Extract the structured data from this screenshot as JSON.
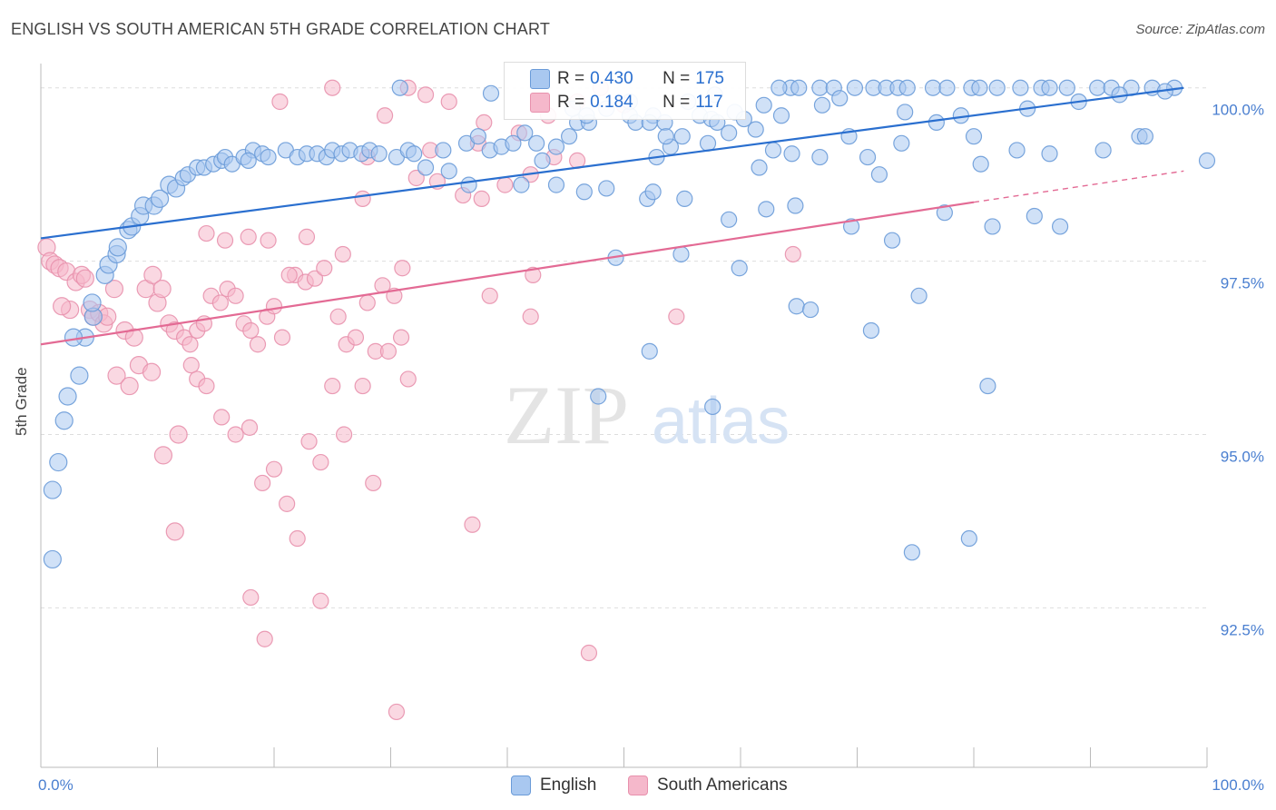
{
  "title": "ENGLISH VS SOUTH AMERICAN 5TH GRADE CORRELATION CHART",
  "source": "Source: ZipAtlas.com",
  "colors": {
    "english_fill": "#a9c8f0",
    "english_stroke": "#6a9bd8",
    "english_line": "#2a6fcf",
    "south_fill": "#f5b8cb",
    "south_stroke": "#e891ad",
    "south_line": "#e36a94",
    "tick_text": "#4a7fd0",
    "grid": "#dddddd"
  },
  "stats": {
    "english": {
      "r_label": "R =",
      "r": "0.430",
      "n_label": "N =",
      "n": "175"
    },
    "south": {
      "r_label": "R =",
      "r": "0.184",
      "n_label": "N =",
      "n": "117"
    }
  },
  "legend": {
    "english": "English",
    "south": "South Americans"
  },
  "chart_data": {
    "type": "scatter",
    "title": "ENGLISH VS SOUTH AMERICAN 5TH GRADE CORRELATION CHART",
    "xlabel": "",
    "ylabel": "5th Grade",
    "xlim": [
      0,
      100
    ],
    "ylim": [
      90.2,
      100.35
    ],
    "x_tick_labels": [
      "0.0%",
      "100.0%"
    ],
    "y_ticks": [
      92.5,
      95.0,
      97.5,
      100.0
    ],
    "y_tick_labels": [
      "92.5%",
      "95.0%",
      "97.5%",
      "100.0%"
    ],
    "grid": true,
    "legend_position": "bottom",
    "watermark": {
      "zip": "ZIP",
      "atlas": "atlas"
    },
    "series": [
      {
        "name": "English",
        "trend": {
          "x": [
            0,
            98
          ],
          "y": [
            97.83,
            100.0
          ]
        },
        "points": [
          [
            1.0,
            93.2
          ],
          [
            1.0,
            94.2
          ],
          [
            1.5,
            94.6
          ],
          [
            2.0,
            95.2
          ],
          [
            2.3,
            95.55
          ],
          [
            3.3,
            95.85
          ],
          [
            3.8,
            96.4
          ],
          [
            2.8,
            96.4
          ],
          [
            4.5,
            96.7
          ],
          [
            4.4,
            96.9
          ],
          [
            5.5,
            97.3
          ],
          [
            5.8,
            97.45
          ],
          [
            6.5,
            97.6
          ],
          [
            6.6,
            97.7
          ],
          [
            7.5,
            97.95
          ],
          [
            7.8,
            98.0
          ],
          [
            8.5,
            98.15
          ],
          [
            8.8,
            98.3
          ],
          [
            9.7,
            98.3
          ],
          [
            10.2,
            98.4
          ],
          [
            11.0,
            98.6
          ],
          [
            11.6,
            98.55
          ],
          [
            12.2,
            98.7
          ],
          [
            12.6,
            98.75
          ],
          [
            13.4,
            98.85
          ],
          [
            14.0,
            98.85
          ],
          [
            14.8,
            98.9
          ],
          [
            15.5,
            98.95
          ],
          [
            15.8,
            99.0
          ],
          [
            16.4,
            98.9
          ],
          [
            17.4,
            99.0
          ],
          [
            18.2,
            99.1
          ],
          [
            19.0,
            99.05
          ],
          [
            19.5,
            99.0
          ],
          [
            21.0,
            99.1
          ],
          [
            22.0,
            99.0
          ],
          [
            22.8,
            99.05
          ],
          [
            23.7,
            99.05
          ],
          [
            24.5,
            99.0
          ],
          [
            25.0,
            99.1
          ],
          [
            25.8,
            99.05
          ],
          [
            26.5,
            99.1
          ],
          [
            27.5,
            99.05
          ],
          [
            28.2,
            99.1
          ],
          [
            29.0,
            99.05
          ],
          [
            30.5,
            99.0
          ],
          [
            31.5,
            99.1
          ],
          [
            32.0,
            99.05
          ],
          [
            33.0,
            98.85
          ],
          [
            34.5,
            99.1
          ],
          [
            35.0,
            98.8
          ],
          [
            36.5,
            99.2
          ],
          [
            37.5,
            99.3
          ],
          [
            38.5,
            99.1
          ],
          [
            39.5,
            99.15
          ],
          [
            40.5,
            99.2
          ],
          [
            41.5,
            99.35
          ],
          [
            42.5,
            99.2
          ],
          [
            43.0,
            98.95
          ],
          [
            44.2,
            99.15
          ],
          [
            45.3,
            99.3
          ],
          [
            46.0,
            99.5
          ],
          [
            47.0,
            99.5
          ],
          [
            48.5,
            99.7
          ],
          [
            50.5,
            99.6
          ],
          [
            51.0,
            99.5
          ],
          [
            52.5,
            99.6
          ],
          [
            53.5,
            99.5
          ],
          [
            54.0,
            99.15
          ],
          [
            55.5,
            99.8
          ],
          [
            56.5,
            99.6
          ],
          [
            57.5,
            99.55
          ],
          [
            58.0,
            99.5
          ],
          [
            59.5,
            99.65
          ],
          [
            60.3,
            99.55
          ],
          [
            61.3,
            99.4
          ],
          [
            62.0,
            99.75
          ],
          [
            63.5,
            99.6
          ],
          [
            64.3,
            100.0
          ],
          [
            65.0,
            100.0
          ],
          [
            66.8,
            100.0
          ],
          [
            68.0,
            100.0
          ],
          [
            68.5,
            99.85
          ],
          [
            69.8,
            100.0
          ],
          [
            71.4,
            100.0
          ],
          [
            72.5,
            100.0
          ],
          [
            73.5,
            100.0
          ],
          [
            74.3,
            100.0
          ],
          [
            76.5,
            100.0
          ],
          [
            77.7,
            100.0
          ],
          [
            79.8,
            100.0
          ],
          [
            80.5,
            100.0
          ],
          [
            82.0,
            100.0
          ],
          [
            84.0,
            100.0
          ],
          [
            85.8,
            100.0
          ],
          [
            86.5,
            100.0
          ],
          [
            88.0,
            100.0
          ],
          [
            90.6,
            100.0
          ],
          [
            91.8,
            100.0
          ],
          [
            93.5,
            100.0
          ],
          [
            95.3,
            100.0
          ],
          [
            97.2,
            100.0
          ],
          [
            63.3,
            100.0
          ],
          [
            30.8,
            100.0
          ],
          [
            38.6,
            99.92
          ],
          [
            46.8,
            99.6
          ],
          [
            50.5,
            99.8
          ],
          [
            52.2,
            99.5
          ],
          [
            53.6,
            99.3
          ],
          [
            55.0,
            99.3
          ],
          [
            57.2,
            99.2
          ],
          [
            59.0,
            99.35
          ],
          [
            62.8,
            99.1
          ],
          [
            64.4,
            99.05
          ],
          [
            66.8,
            99.0
          ],
          [
            69.3,
            99.3
          ],
          [
            70.9,
            99.0
          ],
          [
            73.8,
            99.2
          ],
          [
            76.8,
            99.5
          ],
          [
            80.0,
            99.3
          ],
          [
            83.7,
            99.1
          ],
          [
            86.5,
            99.05
          ],
          [
            91.1,
            99.1
          ],
          [
            94.2,
            99.3
          ],
          [
            94.7,
            99.3
          ],
          [
            100.0,
            98.95
          ],
          [
            41.2,
            98.6
          ],
          [
            44.2,
            98.6
          ],
          [
            52.0,
            98.4
          ],
          [
            52.5,
            98.5
          ],
          [
            55.2,
            98.4
          ],
          [
            59.0,
            98.1
          ],
          [
            62.2,
            98.25
          ],
          [
            64.7,
            98.3
          ],
          [
            69.5,
            98.0
          ],
          [
            73.0,
            97.8
          ],
          [
            77.5,
            98.2
          ],
          [
            81.6,
            98.0
          ],
          [
            85.2,
            98.15
          ],
          [
            87.4,
            98.0
          ],
          [
            48.5,
            98.55
          ],
          [
            46.6,
            98.5
          ],
          [
            54.9,
            97.6
          ],
          [
            59.9,
            97.4
          ],
          [
            64.8,
            96.85
          ],
          [
            66.0,
            96.8
          ],
          [
            75.3,
            97.0
          ],
          [
            71.2,
            96.5
          ],
          [
            52.2,
            96.2
          ],
          [
            47.8,
            95.55
          ],
          [
            57.6,
            95.4
          ],
          [
            74.7,
            93.3
          ],
          [
            79.6,
            93.5
          ],
          [
            81.2,
            95.7
          ],
          [
            49.3,
            97.55
          ],
          [
            52.8,
            99.0
          ],
          [
            45.6,
            99.7
          ],
          [
            57.8,
            99.9
          ],
          [
            67.0,
            99.75
          ],
          [
            74.1,
            99.65
          ],
          [
            78.9,
            99.6
          ],
          [
            84.6,
            99.7
          ],
          [
            89.0,
            99.8
          ],
          [
            92.5,
            99.9
          ],
          [
            96.4,
            99.95
          ],
          [
            61.6,
            98.85
          ],
          [
            71.9,
            98.75
          ],
          [
            80.6,
            98.9
          ],
          [
            36.7,
            98.6
          ],
          [
            17.8,
            98.95
          ]
        ]
      },
      {
        "name": "South Americans",
        "trend": {
          "x": [
            0,
            80
          ],
          "y": [
            96.3,
            98.35
          ]
        },
        "trend_dashed": {
          "x": [
            80,
            98
          ],
          "y": [
            98.35,
            98.8
          ]
        },
        "points": [
          [
            0.5,
            97.7
          ],
          [
            0.8,
            97.5
          ],
          [
            1.2,
            97.45
          ],
          [
            1.6,
            97.4
          ],
          [
            2.2,
            97.35
          ],
          [
            2.5,
            96.8
          ],
          [
            1.8,
            96.85
          ],
          [
            3.0,
            97.2
          ],
          [
            3.5,
            97.3
          ],
          [
            3.8,
            97.25
          ],
          [
            4.2,
            96.8
          ],
          [
            4.5,
            96.7
          ],
          [
            5.0,
            96.75
          ],
          [
            5.4,
            96.6
          ],
          [
            5.7,
            96.7
          ],
          [
            6.3,
            97.1
          ],
          [
            7.2,
            96.5
          ],
          [
            8.0,
            96.4
          ],
          [
            9.0,
            97.1
          ],
          [
            9.6,
            97.3
          ],
          [
            10.0,
            96.9
          ],
          [
            10.4,
            97.1
          ],
          [
            11.0,
            96.6
          ],
          [
            11.5,
            96.5
          ],
          [
            12.3,
            96.4
          ],
          [
            12.8,
            96.3
          ],
          [
            13.4,
            96.5
          ],
          [
            14.0,
            96.6
          ],
          [
            14.6,
            97.0
          ],
          [
            15.4,
            96.9
          ],
          [
            16.0,
            97.1
          ],
          [
            16.7,
            97.0
          ],
          [
            17.4,
            96.6
          ],
          [
            18.0,
            96.5
          ],
          [
            18.6,
            96.3
          ],
          [
            19.4,
            96.7
          ],
          [
            20.0,
            96.85
          ],
          [
            20.7,
            96.4
          ],
          [
            21.8,
            97.3
          ],
          [
            22.7,
            97.2
          ],
          [
            23.5,
            97.25
          ],
          [
            24.3,
            97.4
          ],
          [
            25.5,
            96.7
          ],
          [
            26.2,
            96.3
          ],
          [
            27.0,
            96.4
          ],
          [
            28.0,
            96.9
          ],
          [
            28.7,
            96.2
          ],
          [
            29.3,
            97.15
          ],
          [
            30.3,
            97.0
          ],
          [
            31.0,
            97.4
          ],
          [
            6.5,
            95.85
          ],
          [
            7.6,
            95.7
          ],
          [
            8.4,
            96.0
          ],
          [
            9.5,
            95.9
          ],
          [
            11.8,
            95.0
          ],
          [
            12.9,
            96.0
          ],
          [
            13.4,
            95.8
          ],
          [
            14.2,
            95.7
          ],
          [
            15.5,
            95.25
          ],
          [
            16.7,
            95.0
          ],
          [
            17.9,
            95.1
          ],
          [
            19.0,
            94.3
          ],
          [
            20.0,
            94.5
          ],
          [
            21.1,
            94.0
          ],
          [
            22.0,
            93.5
          ],
          [
            23.0,
            94.9
          ],
          [
            24.0,
            94.6
          ],
          [
            25.0,
            95.7
          ],
          [
            26.0,
            95.0
          ],
          [
            27.6,
            95.7
          ],
          [
            28.5,
            94.3
          ],
          [
            29.8,
            96.2
          ],
          [
            30.9,
            96.4
          ],
          [
            31.5,
            95.8
          ],
          [
            14.2,
            97.9
          ],
          [
            15.8,
            97.8
          ],
          [
            17.8,
            97.85
          ],
          [
            19.5,
            97.8
          ],
          [
            21.3,
            97.3
          ],
          [
            22.8,
            97.85
          ],
          [
            25.9,
            97.6
          ],
          [
            27.6,
            98.4
          ],
          [
            28.0,
            99.0
          ],
          [
            29.5,
            99.6
          ],
          [
            31.5,
            100.0
          ],
          [
            33.0,
            99.9
          ],
          [
            35.0,
            99.8
          ],
          [
            38.0,
            99.5
          ],
          [
            41.0,
            99.35
          ],
          [
            43.5,
            99.6
          ],
          [
            46.0,
            99.8
          ],
          [
            48.0,
            100.0
          ],
          [
            50.0,
            99.75
          ],
          [
            25.0,
            100.0
          ],
          [
            20.5,
            99.8
          ],
          [
            32.2,
            98.7
          ],
          [
            34.0,
            98.65
          ],
          [
            36.2,
            98.45
          ],
          [
            37.8,
            98.4
          ],
          [
            39.8,
            98.6
          ],
          [
            42.0,
            98.75
          ],
          [
            44.0,
            99.0
          ],
          [
            46.0,
            98.95
          ],
          [
            38.5,
            97.0
          ],
          [
            42.2,
            97.3
          ],
          [
            11.5,
            93.6
          ],
          [
            18.0,
            92.65
          ],
          [
            19.2,
            92.05
          ],
          [
            24.0,
            92.6
          ],
          [
            30.5,
            91.0
          ],
          [
            37.0,
            93.7
          ],
          [
            47.0,
            91.85
          ],
          [
            42.0,
            96.7
          ],
          [
            54.5,
            96.7
          ],
          [
            37.5,
            99.2
          ],
          [
            64.5,
            97.6
          ],
          [
            10.5,
            94.7
          ],
          [
            33.4,
            99.1
          ]
        ]
      }
    ]
  }
}
